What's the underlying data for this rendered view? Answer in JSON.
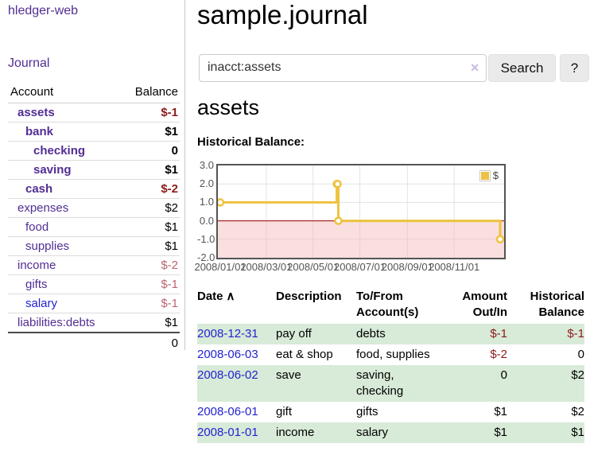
{
  "app": {
    "title": "hledger-web"
  },
  "sidebar": {
    "journal_label": "Journal",
    "accounts_table": {
      "headers": {
        "account": "Account",
        "balance": "Balance"
      },
      "rows": [
        {
          "name": "assets",
          "balance": "$-1",
          "depth": 1,
          "bold": true,
          "negative": "strong"
        },
        {
          "name": "bank",
          "balance": "$1",
          "depth": 2,
          "bold": true,
          "negative": "none"
        },
        {
          "name": "checking",
          "balance": "0",
          "depth": 3,
          "bold": true,
          "negative": "none"
        },
        {
          "name": "saving",
          "balance": "$1",
          "depth": 3,
          "bold": true,
          "negative": "none"
        },
        {
          "name": "cash",
          "balance": "$-2",
          "depth": 2,
          "bold": true,
          "negative": "strong"
        },
        {
          "name": "expenses",
          "balance": "$2",
          "depth": 1,
          "bold": false,
          "negative": "none"
        },
        {
          "name": "food",
          "balance": "$1",
          "depth": 2,
          "bold": false,
          "negative": "none"
        },
        {
          "name": "supplies",
          "balance": "$1",
          "depth": 2,
          "bold": false,
          "negative": "none"
        },
        {
          "name": "income",
          "balance": "$-2",
          "depth": 1,
          "bold": false,
          "negative": "dim"
        },
        {
          "name": "gifts",
          "balance": "$-1",
          "depth": 2,
          "bold": false,
          "negative": "dim"
        },
        {
          "name": "salary",
          "balance": "$-1",
          "depth": 2,
          "bold": false,
          "negative": "dim"
        },
        {
          "name": "liabilities:debts",
          "balance": "$1",
          "depth": 1,
          "bold": false,
          "negative": "none"
        }
      ],
      "total": "0"
    }
  },
  "main": {
    "title": "sample.journal",
    "search": {
      "value": "inacct:assets",
      "clear_icon": "✕",
      "button_label": "Search",
      "help_label": "?"
    },
    "account_heading": "assets",
    "chart_label": "Historical Balance:"
  },
  "chart_data": {
    "type": "line",
    "step": true,
    "title": "Historical Balance",
    "legend": [
      {
        "label": "$",
        "color": "#edc240"
      }
    ],
    "legend_position": "top-right",
    "grid": true,
    "ylim": [
      -2,
      3
    ],
    "yticks": [
      3.0,
      2.0,
      1.0,
      0.0,
      -1.0,
      -2.0
    ],
    "x_max": 366,
    "xticks": [
      {
        "day": 0,
        "label": "2008/01/01"
      },
      {
        "day": 60,
        "label": "2008/03/01"
      },
      {
        "day": 121,
        "label": "2008/05/01"
      },
      {
        "day": 182,
        "label": "2008/07/01"
      },
      {
        "day": 244,
        "label": "2008/09/01"
      },
      {
        "day": 305,
        "label": "2008/11/01"
      }
    ],
    "series": [
      {
        "name": "$",
        "dates": [
          "2008-01-01",
          "2008-06-01",
          "2008-06-02",
          "2008-06-03",
          "2008-12-31"
        ],
        "values": [
          1,
          2,
          2,
          0,
          -1
        ],
        "points": [
          [
            0,
            1
          ],
          [
            152,
            2
          ],
          [
            153,
            2
          ],
          [
            154,
            0
          ],
          [
            365,
            -1
          ]
        ]
      }
    ],
    "series_color": "#edc240",
    "zero_line_color": "#990000",
    "below_zero_fill": "#f5b8b8",
    "gridline_color": "#e3e3e3"
  },
  "register_table": {
    "headers": {
      "date": "Date",
      "sort_icon": "∧",
      "description": "Description",
      "tofrom": "To/From Account(s)",
      "amount": "Amount Out/In",
      "balance": "Historical Balance"
    },
    "rows": [
      {
        "date": "2008-12-31",
        "description": "pay off",
        "accounts": "debts",
        "amount": "$-1",
        "balance": "$-1"
      },
      {
        "date": "2008-06-03",
        "description": "eat & shop",
        "accounts": "food, supplies",
        "amount": "$-2",
        "balance": "0"
      },
      {
        "date": "2008-06-02",
        "description": "save",
        "accounts": "saving, checking",
        "amount": "0",
        "balance": "$2"
      },
      {
        "date": "2008-06-01",
        "description": "gift",
        "accounts": "gifts",
        "amount": "$1",
        "balance": "$2"
      },
      {
        "date": "2008-01-01",
        "description": "income",
        "accounts": "salary",
        "amount": "$1",
        "balance": "$1"
      }
    ]
  },
  "colors": {
    "link_purple": "#522d94",
    "link_blue": "#2323d0",
    "negative_strong": "#8e1a1a",
    "negative_dim": "#b9656f",
    "row_stripe_green": "#d8ead8",
    "series_yellow": "#edc240",
    "chart_border": "#545454",
    "zero_line": "#990000"
  }
}
